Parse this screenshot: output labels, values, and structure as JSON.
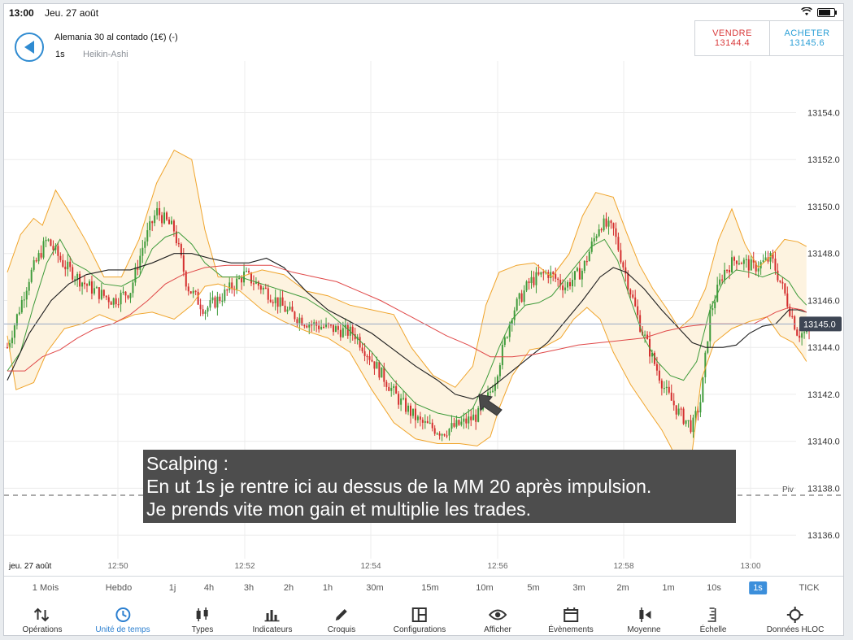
{
  "status": {
    "time": "13:00",
    "date": "Jeu. 27 août",
    "wifi_icon": "wifi-icon",
    "battery_level": 0.8
  },
  "header": {
    "instrument": "Alemania 30 al contado (1€) (-)",
    "timeframe": "1s",
    "chart_type": "Heikin-Ashi",
    "sell_label": "VENDRE",
    "sell_price": "13144.4",
    "buy_label": "ACHETER",
    "buy_price": "13145.6"
  },
  "chart_data": {
    "type": "candlestick",
    "title": "",
    "x_date_label": "jeu. 27 août",
    "x_ticks": [
      "12:50",
      "12:52",
      "12:54",
      "12:56",
      "12:58",
      "13:00"
    ],
    "y_ticks": [
      13154.0,
      13152.0,
      13150.0,
      13148.0,
      13146.0,
      13144.0,
      13142.0,
      13140.0,
      13138.0,
      13136.0
    ],
    "ylim": [
      13135.0,
      13156.2
    ],
    "current_price": "13145.0",
    "pivot": {
      "label": "Piv",
      "value": 13137.7
    },
    "colors": {
      "up": "#3f9b3b",
      "down": "#d42e2e",
      "band": "#f0a42b",
      "band_fill": "#fdf3e0",
      "ma_fast": "#3f9b3b",
      "ma_slow": "#1d1d1d",
      "ma_long": "#e04848",
      "price_line": "#9aa9c4"
    },
    "series": [
      {
        "name": "BB upper",
        "points": [
          [
            12.0,
            13147.2
          ],
          [
            12.3,
            13148.8
          ],
          [
            12.6,
            13149.5
          ],
          [
            12.8,
            13149.2
          ],
          [
            13.1,
            13150.7
          ],
          [
            13.4,
            13149.8
          ],
          [
            13.8,
            13148.5
          ],
          [
            14.2,
            13147.0
          ],
          [
            14.6,
            13147.0
          ],
          [
            15.0,
            13148.6
          ],
          [
            15.4,
            13151.0
          ],
          [
            15.8,
            13152.4
          ],
          [
            16.2,
            13152.0
          ],
          [
            16.5,
            13149.0
          ],
          [
            16.8,
            13147.0
          ],
          [
            17.3,
            13147.0
          ],
          [
            17.8,
            13147.3
          ],
          [
            18.3,
            13147.1
          ],
          [
            18.8,
            13146.4
          ],
          [
            19.3,
            13146.2
          ],
          [
            19.8,
            13145.8
          ],
          [
            20.3,
            13145.6
          ],
          [
            20.8,
            13145.4
          ],
          [
            21.2,
            13144.0
          ],
          [
            21.7,
            13142.8
          ],
          [
            22.2,
            13142.3
          ],
          [
            22.6,
            13143.2
          ],
          [
            22.9,
            13145.8
          ],
          [
            23.2,
            13147.2
          ],
          [
            23.6,
            13147.5
          ],
          [
            24.0,
            13147.6
          ],
          [
            24.4,
            13147.0
          ],
          [
            24.8,
            13148.0
          ],
          [
            25.1,
            13149.6
          ],
          [
            25.4,
            13150.6
          ],
          [
            25.8,
            13150.4
          ],
          [
            26.1,
            13148.9
          ],
          [
            26.4,
            13147.5
          ],
          [
            26.7,
            13146.5
          ],
          [
            27.0,
            13145.7
          ],
          [
            27.3,
            13144.8
          ],
          [
            27.6,
            13145.3
          ],
          [
            27.9,
            13146.5
          ],
          [
            28.2,
            13148.6
          ],
          [
            28.5,
            13149.9
          ],
          [
            28.8,
            13148.4
          ],
          [
            29.1,
            13147.4
          ],
          [
            29.4,
            13147.9
          ],
          [
            29.7,
            13148.6
          ],
          [
            30.0,
            13148.5
          ],
          [
            30.2,
            13148.3
          ]
        ]
      },
      {
        "name": "BB lower",
        "points": [
          [
            12.0,
            13144.5
          ],
          [
            12.2,
            13142.2
          ],
          [
            12.6,
            13142.5
          ],
          [
            12.9,
            13143.8
          ],
          [
            13.3,
            13144.8
          ],
          [
            13.7,
            13145.0
          ],
          [
            14.1,
            13145.4
          ],
          [
            14.5,
            13145.1
          ],
          [
            14.9,
            13145.4
          ],
          [
            15.3,
            13145.5
          ],
          [
            15.8,
            13145.2
          ],
          [
            16.2,
            13145.8
          ],
          [
            16.5,
            13146.6
          ],
          [
            16.8,
            13146.7
          ],
          [
            17.3,
            13146.4
          ],
          [
            17.8,
            13145.6
          ],
          [
            18.3,
            13145.1
          ],
          [
            18.8,
            13144.7
          ],
          [
            19.3,
            13144.4
          ],
          [
            19.8,
            13143.8
          ],
          [
            20.3,
            13142.2
          ],
          [
            20.8,
            13140.8
          ],
          [
            21.3,
            13140.1
          ],
          [
            21.8,
            13139.9
          ],
          [
            22.3,
            13139.9
          ],
          [
            22.7,
            13139.8
          ],
          [
            23.0,
            13140.2
          ],
          [
            23.2,
            13141.4
          ],
          [
            23.5,
            13142.8
          ],
          [
            23.9,
            13143.9
          ],
          [
            24.2,
            13144.0
          ],
          [
            24.6,
            13144.4
          ],
          [
            24.9,
            13145.2
          ],
          [
            25.2,
            13145.7
          ],
          [
            25.5,
            13145.2
          ],
          [
            25.8,
            13143.8
          ],
          [
            26.2,
            13142.4
          ],
          [
            26.6,
            13141.3
          ],
          [
            26.9,
            13140.5
          ],
          [
            27.1,
            13139.8
          ],
          [
            27.3,
            13139.0
          ],
          [
            27.45,
            13138.6
          ],
          [
            27.6,
            13139.6
          ],
          [
            27.8,
            13142.6
          ],
          [
            28.1,
            13144.2
          ],
          [
            28.5,
            13144.8
          ],
          [
            28.9,
            13145.1
          ],
          [
            29.3,
            13145.3
          ],
          [
            29.6,
            13144.5
          ],
          [
            29.9,
            13144.2
          ],
          [
            30.1,
            13143.7
          ],
          [
            30.2,
            13143.4
          ]
        ]
      },
      {
        "name": "MM fast",
        "points": [
          [
            12.0,
            13143.0
          ],
          [
            12.3,
            13143.8
          ],
          [
            12.6,
            13145.8
          ],
          [
            12.9,
            13147.6
          ],
          [
            13.2,
            13148.6
          ],
          [
            13.5,
            13147.6
          ],
          [
            13.8,
            13147.3
          ],
          [
            14.2,
            13146.7
          ],
          [
            14.6,
            13146.6
          ],
          [
            15.0,
            13147.0
          ],
          [
            15.3,
            13148.2
          ],
          [
            15.6,
            13148.7
          ],
          [
            15.9,
            13148.9
          ],
          [
            16.2,
            13148.4
          ],
          [
            16.5,
            13147.6
          ],
          [
            16.9,
            13147.0
          ],
          [
            17.3,
            13147.0
          ],
          [
            17.8,
            13146.7
          ],
          [
            18.3,
            13146.4
          ],
          [
            18.8,
            13146.1
          ],
          [
            19.3,
            13145.5
          ],
          [
            19.8,
            13144.7
          ],
          [
            20.3,
            13143.8
          ],
          [
            20.8,
            13142.6
          ],
          [
            21.3,
            13141.6
          ],
          [
            21.8,
            13141.2
          ],
          [
            22.3,
            13141.0
          ],
          [
            22.6,
            13141.4
          ],
          [
            22.9,
            13142.6
          ],
          [
            23.2,
            13144.0
          ],
          [
            23.5,
            13145.2
          ],
          [
            23.8,
            13145.8
          ],
          [
            24.1,
            13145.9
          ],
          [
            24.4,
            13146.2
          ],
          [
            24.7,
            13146.9
          ],
          [
            25.0,
            13147.6
          ],
          [
            25.3,
            13148.3
          ],
          [
            25.6,
            13148.6
          ],
          [
            25.9,
            13147.7
          ],
          [
            26.2,
            13146.0
          ],
          [
            26.5,
            13144.4
          ],
          [
            26.8,
            13143.4
          ],
          [
            27.1,
            13142.8
          ],
          [
            27.4,
            13142.6
          ],
          [
            27.7,
            13143.4
          ],
          [
            28.0,
            13145.6
          ],
          [
            28.3,
            13146.8
          ],
          [
            28.6,
            13147.3
          ],
          [
            28.9,
            13147.2
          ],
          [
            29.2,
            13147.0
          ],
          [
            29.5,
            13147.2
          ],
          [
            29.8,
            13146.8
          ],
          [
            30.0,
            13146.2
          ],
          [
            30.2,
            13145.8
          ]
        ]
      },
      {
        "name": "MM 20",
        "points": [
          [
            12.0,
            13142.6
          ],
          [
            12.5,
            13144.6
          ],
          [
            13.0,
            13146.0
          ],
          [
            13.4,
            13146.7
          ],
          [
            13.8,
            13147.1
          ],
          [
            14.3,
            13147.3
          ],
          [
            14.8,
            13147.3
          ],
          [
            15.3,
            13147.6
          ],
          [
            15.8,
            13148.0
          ],
          [
            16.2,
            13148.0
          ],
          [
            16.6,
            13147.8
          ],
          [
            17.1,
            13147.6
          ],
          [
            17.5,
            13147.6
          ],
          [
            17.9,
            13147.8
          ],
          [
            18.3,
            13147.4
          ],
          [
            18.8,
            13146.4
          ],
          [
            19.3,
            13145.6
          ],
          [
            19.8,
            13145.1
          ],
          [
            20.3,
            13144.6
          ],
          [
            20.8,
            13143.9
          ],
          [
            21.3,
            13143.2
          ],
          [
            21.8,
            13142.6
          ],
          [
            22.2,
            13142.0
          ],
          [
            22.6,
            13141.8
          ],
          [
            22.8,
            13142.0
          ],
          [
            23.1,
            13142.4
          ],
          [
            23.5,
            13143.0
          ],
          [
            23.9,
            13143.6
          ],
          [
            24.3,
            13144.2
          ],
          [
            24.7,
            13145.1
          ],
          [
            25.1,
            13146.0
          ],
          [
            25.5,
            13147.0
          ],
          [
            25.8,
            13147.4
          ],
          [
            26.1,
            13147.2
          ],
          [
            26.5,
            13146.5
          ],
          [
            26.9,
            13145.6
          ],
          [
            27.3,
            13144.8
          ],
          [
            27.6,
            13144.2
          ],
          [
            27.9,
            13144.0
          ],
          [
            28.3,
            13144.0
          ],
          [
            28.6,
            13144.1
          ],
          [
            28.9,
            13144.6
          ],
          [
            29.2,
            13144.9
          ],
          [
            29.5,
            13145.0
          ],
          [
            29.8,
            13145.6
          ],
          [
            30.0,
            13145.6
          ],
          [
            30.2,
            13145.5
          ]
        ]
      },
      {
        "name": "MM long",
        "points": [
          [
            12.0,
            13143.0
          ],
          [
            12.4,
            13143.0
          ],
          [
            12.8,
            13143.6
          ],
          [
            13.2,
            13143.9
          ],
          [
            13.6,
            13144.4
          ],
          [
            14.0,
            13144.8
          ],
          [
            14.4,
            13145.0
          ],
          [
            14.8,
            13145.4
          ],
          [
            15.2,
            13146.0
          ],
          [
            15.6,
            13146.7
          ],
          [
            16.0,
            13147.1
          ],
          [
            16.5,
            13147.4
          ],
          [
            17.0,
            13147.5
          ],
          [
            17.5,
            13147.5
          ],
          [
            18.0,
            13147.5
          ],
          [
            18.5,
            13147.2
          ],
          [
            19.0,
            13147.0
          ],
          [
            19.5,
            13146.8
          ],
          [
            20.0,
            13146.4
          ],
          [
            20.5,
            13146.0
          ],
          [
            21.0,
            13145.5
          ],
          [
            21.5,
            13145.0
          ],
          [
            22.0,
            13144.5
          ],
          [
            22.5,
            13144.1
          ],
          [
            23.0,
            13143.6
          ],
          [
            23.5,
            13143.6
          ],
          [
            24.0,
            13143.7
          ],
          [
            24.5,
            13143.9
          ],
          [
            25.0,
            13144.1
          ],
          [
            25.5,
            13144.2
          ],
          [
            26.0,
            13144.3
          ],
          [
            26.5,
            13144.4
          ],
          [
            27.0,
            13144.7
          ],
          [
            27.5,
            13144.9
          ],
          [
            28.0,
            13145.0
          ],
          [
            28.5,
            13145.0
          ],
          [
            29.0,
            13145.0
          ],
          [
            29.5,
            13145.5
          ],
          [
            29.8,
            13145.7
          ],
          [
            30.1,
            13145.6
          ],
          [
            30.2,
            13145.5
          ]
        ]
      }
    ],
    "candle_path_minutes": [
      12.0,
      12.5,
      12.9,
      13.3,
      13.7,
      14.0,
      14.4,
      14.8,
      15.1,
      15.4,
      15.8,
      16.1,
      16.5,
      16.9,
      17.4,
      17.9,
      18.4,
      18.9,
      19.4,
      19.9,
      20.4,
      20.9,
      21.4,
      21.9,
      22.4,
      22.8,
      23.1,
      23.5,
      23.9,
      24.3,
      24.7,
      25.1,
      25.5,
      25.8,
      26.1,
      26.4,
      26.7,
      27.0,
      27.3,
      27.6,
      27.8,
      28.0,
      28.3,
      28.6,
      29.0,
      29.4,
      29.7,
      30.0,
      30.3
    ],
    "candle_path_prices": [
      13144.0,
      13147.0,
      13148.6,
      13147.5,
      13146.8,
      13146.4,
      13146.0,
      13146.4,
      13148.4,
      13149.8,
      13149.0,
      13146.6,
      13145.6,
      13146.2,
      13147.1,
      13146.4,
      13145.5,
      13145.0,
      13144.8,
      13144.6,
      13143.2,
      13141.8,
      13140.8,
      13140.4,
      13140.8,
      13141.2,
      13142.6,
      13145.5,
      13146.8,
      13147.2,
      13146.6,
      13147.3,
      13149.3,
      13149.0,
      13147.0,
      13145.0,
      13143.5,
      13142.1,
      13141.2,
      13140.6,
      13141.8,
      13145.4,
      13147.2,
      13147.8,
      13147.4,
      13147.8,
      13146.3,
      13144.6,
      13144.6
    ]
  },
  "annotation": {
    "lines": [
      "Scalping :",
      "En ut 1s je rentre ici au dessus de la MM 20 après impulsion.",
      "Je prends vite mon gain et multiplie les trades."
    ],
    "arrow_icon": "arrow-icon"
  },
  "timeframes": [
    "1 Mois",
    "Hebdo",
    "1j",
    "4h",
    "3h",
    "2h",
    "1h",
    "30m",
    "15m",
    "10m",
    "5m",
    "3m",
    "2m",
    "1m",
    "10s",
    "1s",
    "TICK"
  ],
  "timeframe_active": "1s",
  "toolbar": [
    {
      "label": "Opérations",
      "icon": "arrows-updown-icon"
    },
    {
      "label": "Unité de temps",
      "icon": "clock-icon",
      "active": true
    },
    {
      "label": "Types",
      "icon": "candles-icon"
    },
    {
      "label": "Indicateurs",
      "icon": "bar-chart-icon"
    },
    {
      "label": "Croquis",
      "icon": "pencil-icon"
    },
    {
      "label": "Configurations",
      "icon": "layout-icon"
    },
    {
      "label": "Afficher",
      "icon": "eye-icon"
    },
    {
      "label": "Évènements",
      "icon": "calendar-icon"
    },
    {
      "label": "Moyenne",
      "icon": "average-icon"
    },
    {
      "label": "Échelle",
      "icon": "scale-icon"
    },
    {
      "label": "Données HLOC",
      "icon": "crosshair-icon"
    }
  ]
}
